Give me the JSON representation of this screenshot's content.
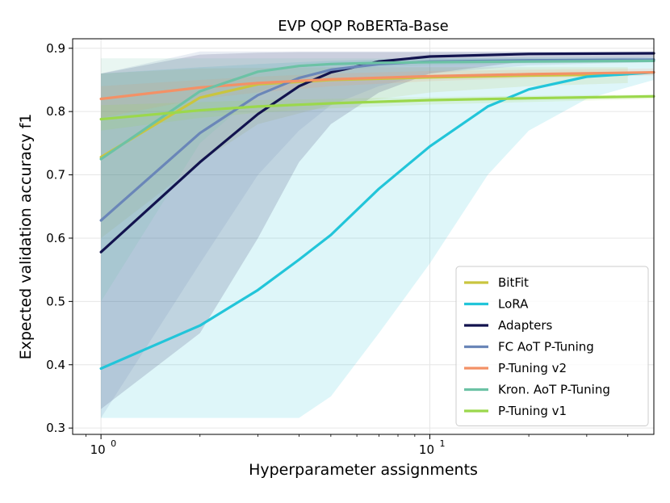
{
  "chart_data": {
    "type": "line",
    "title": "EVP QQP RoBERTa-Base",
    "xlabel": "Hyperparameter assignments",
    "ylabel": "Expected validation accuracy f1",
    "xscale": "log",
    "xlim": [
      0.82,
      48
    ],
    "ylim": [
      0.29,
      0.915
    ],
    "x_ticks": [
      {
        "value": 1,
        "base": "10",
        "exp": "0"
      },
      {
        "value": 10,
        "base": "10",
        "exp": "1"
      }
    ],
    "y_ticks": [
      0.3,
      0.4,
      0.5,
      0.6,
      0.7,
      0.8,
      0.9
    ],
    "y_tick_labels": [
      "0.3",
      "0.4",
      "0.5",
      "0.6",
      "0.7",
      "0.8",
      "0.9"
    ],
    "grid": true,
    "legend_position": "lower-right",
    "series": [
      {
        "name": "BitFit",
        "color": "#c9c53f",
        "x": [
          1,
          2,
          3,
          5,
          10,
          20,
          40
        ],
        "y": [
          0.728,
          0.822,
          0.843,
          0.85,
          0.854,
          0.857,
          0.859
        ],
        "lower": [
          0.6,
          0.72,
          0.78,
          0.81,
          0.83,
          0.84,
          0.845
        ],
        "upper": [
          0.86,
          0.868,
          0.869,
          0.87,
          0.87,
          0.87,
          0.87
        ]
      },
      {
        "name": "LoRA",
        "color": "#22c5d9",
        "x": [
          1,
          2,
          3,
          4,
          5,
          7,
          10,
          15,
          20,
          30,
          48
        ],
        "y": [
          0.394,
          0.462,
          0.518,
          0.566,
          0.605,
          0.678,
          0.745,
          0.808,
          0.835,
          0.855,
          0.862
        ],
        "lower": [
          0.316,
          0.316,
          0.316,
          0.316,
          0.35,
          0.45,
          0.56,
          0.7,
          0.77,
          0.82,
          0.85
        ],
        "upper": [
          0.86,
          0.87,
          0.875,
          0.878,
          0.88,
          0.882,
          0.884,
          0.885,
          0.886,
          0.886,
          0.886
        ]
      },
      {
        "name": "Adapters",
        "color": "#12134e",
        "x": [
          1,
          2,
          3,
          4,
          5,
          7,
          10,
          20,
          48
        ],
        "y": [
          0.578,
          0.72,
          0.796,
          0.84,
          0.862,
          0.879,
          0.887,
          0.891,
          0.892
        ],
        "lower": [
          0.33,
          0.45,
          0.6,
          0.72,
          0.78,
          0.83,
          0.86,
          0.88,
          0.885
        ],
        "upper": [
          0.86,
          0.89,
          0.893,
          0.894,
          0.894,
          0.894,
          0.894,
          0.894,
          0.894
        ]
      },
      {
        "name": "FC AoT P-Tuning",
        "color": "#6a86b8",
        "x": [
          1,
          2,
          3,
          4,
          5,
          7,
          10,
          20,
          48
        ],
        "y": [
          0.628,
          0.766,
          0.826,
          0.853,
          0.866,
          0.875,
          0.879,
          0.881,
          0.882
        ],
        "lower": [
          0.316,
          0.56,
          0.7,
          0.77,
          0.81,
          0.84,
          0.86,
          0.873,
          0.878
        ],
        "upper": [
          0.86,
          0.895,
          0.895,
          0.895,
          0.895,
          0.895,
          0.895,
          0.895,
          0.895
        ]
      },
      {
        "name": "P-Tuning v2",
        "color": "#f39166",
        "x": [
          1,
          2,
          3,
          5,
          10,
          20,
          48
        ],
        "y": [
          0.82,
          0.838,
          0.845,
          0.851,
          0.856,
          0.859,
          0.862
        ],
        "lower": [
          0.79,
          0.82,
          0.83,
          0.84,
          0.848,
          0.853,
          0.857
        ],
        "upper": [
          0.84,
          0.85,
          0.855,
          0.86,
          0.864,
          0.866,
          0.868
        ]
      },
      {
        "name": "Kron. AoT P-Tuning",
        "color": "#6cc2a5",
        "x": [
          1,
          2,
          3,
          4,
          5,
          7,
          10,
          20,
          48
        ],
        "y": [
          0.725,
          0.832,
          0.863,
          0.872,
          0.875,
          0.877,
          0.878,
          0.879,
          0.88
        ],
        "lower": [
          0.5,
          0.75,
          0.83,
          0.855,
          0.865,
          0.87,
          0.873,
          0.876,
          0.878
        ],
        "upper": [
          0.884,
          0.884,
          0.884,
          0.884,
          0.884,
          0.884,
          0.884,
          0.884,
          0.884
        ]
      },
      {
        "name": "P-Tuning v1",
        "color": "#9bd84c",
        "x": [
          1,
          2,
          3,
          5,
          10,
          20,
          48
        ],
        "y": [
          0.788,
          0.802,
          0.808,
          0.813,
          0.818,
          0.821,
          0.824
        ],
        "lower": [
          0.77,
          0.79,
          0.798,
          0.805,
          0.811,
          0.815,
          0.82
        ],
        "upper": [
          0.81,
          0.815,
          0.818,
          0.82,
          0.823,
          0.825,
          0.827
        ]
      }
    ]
  }
}
